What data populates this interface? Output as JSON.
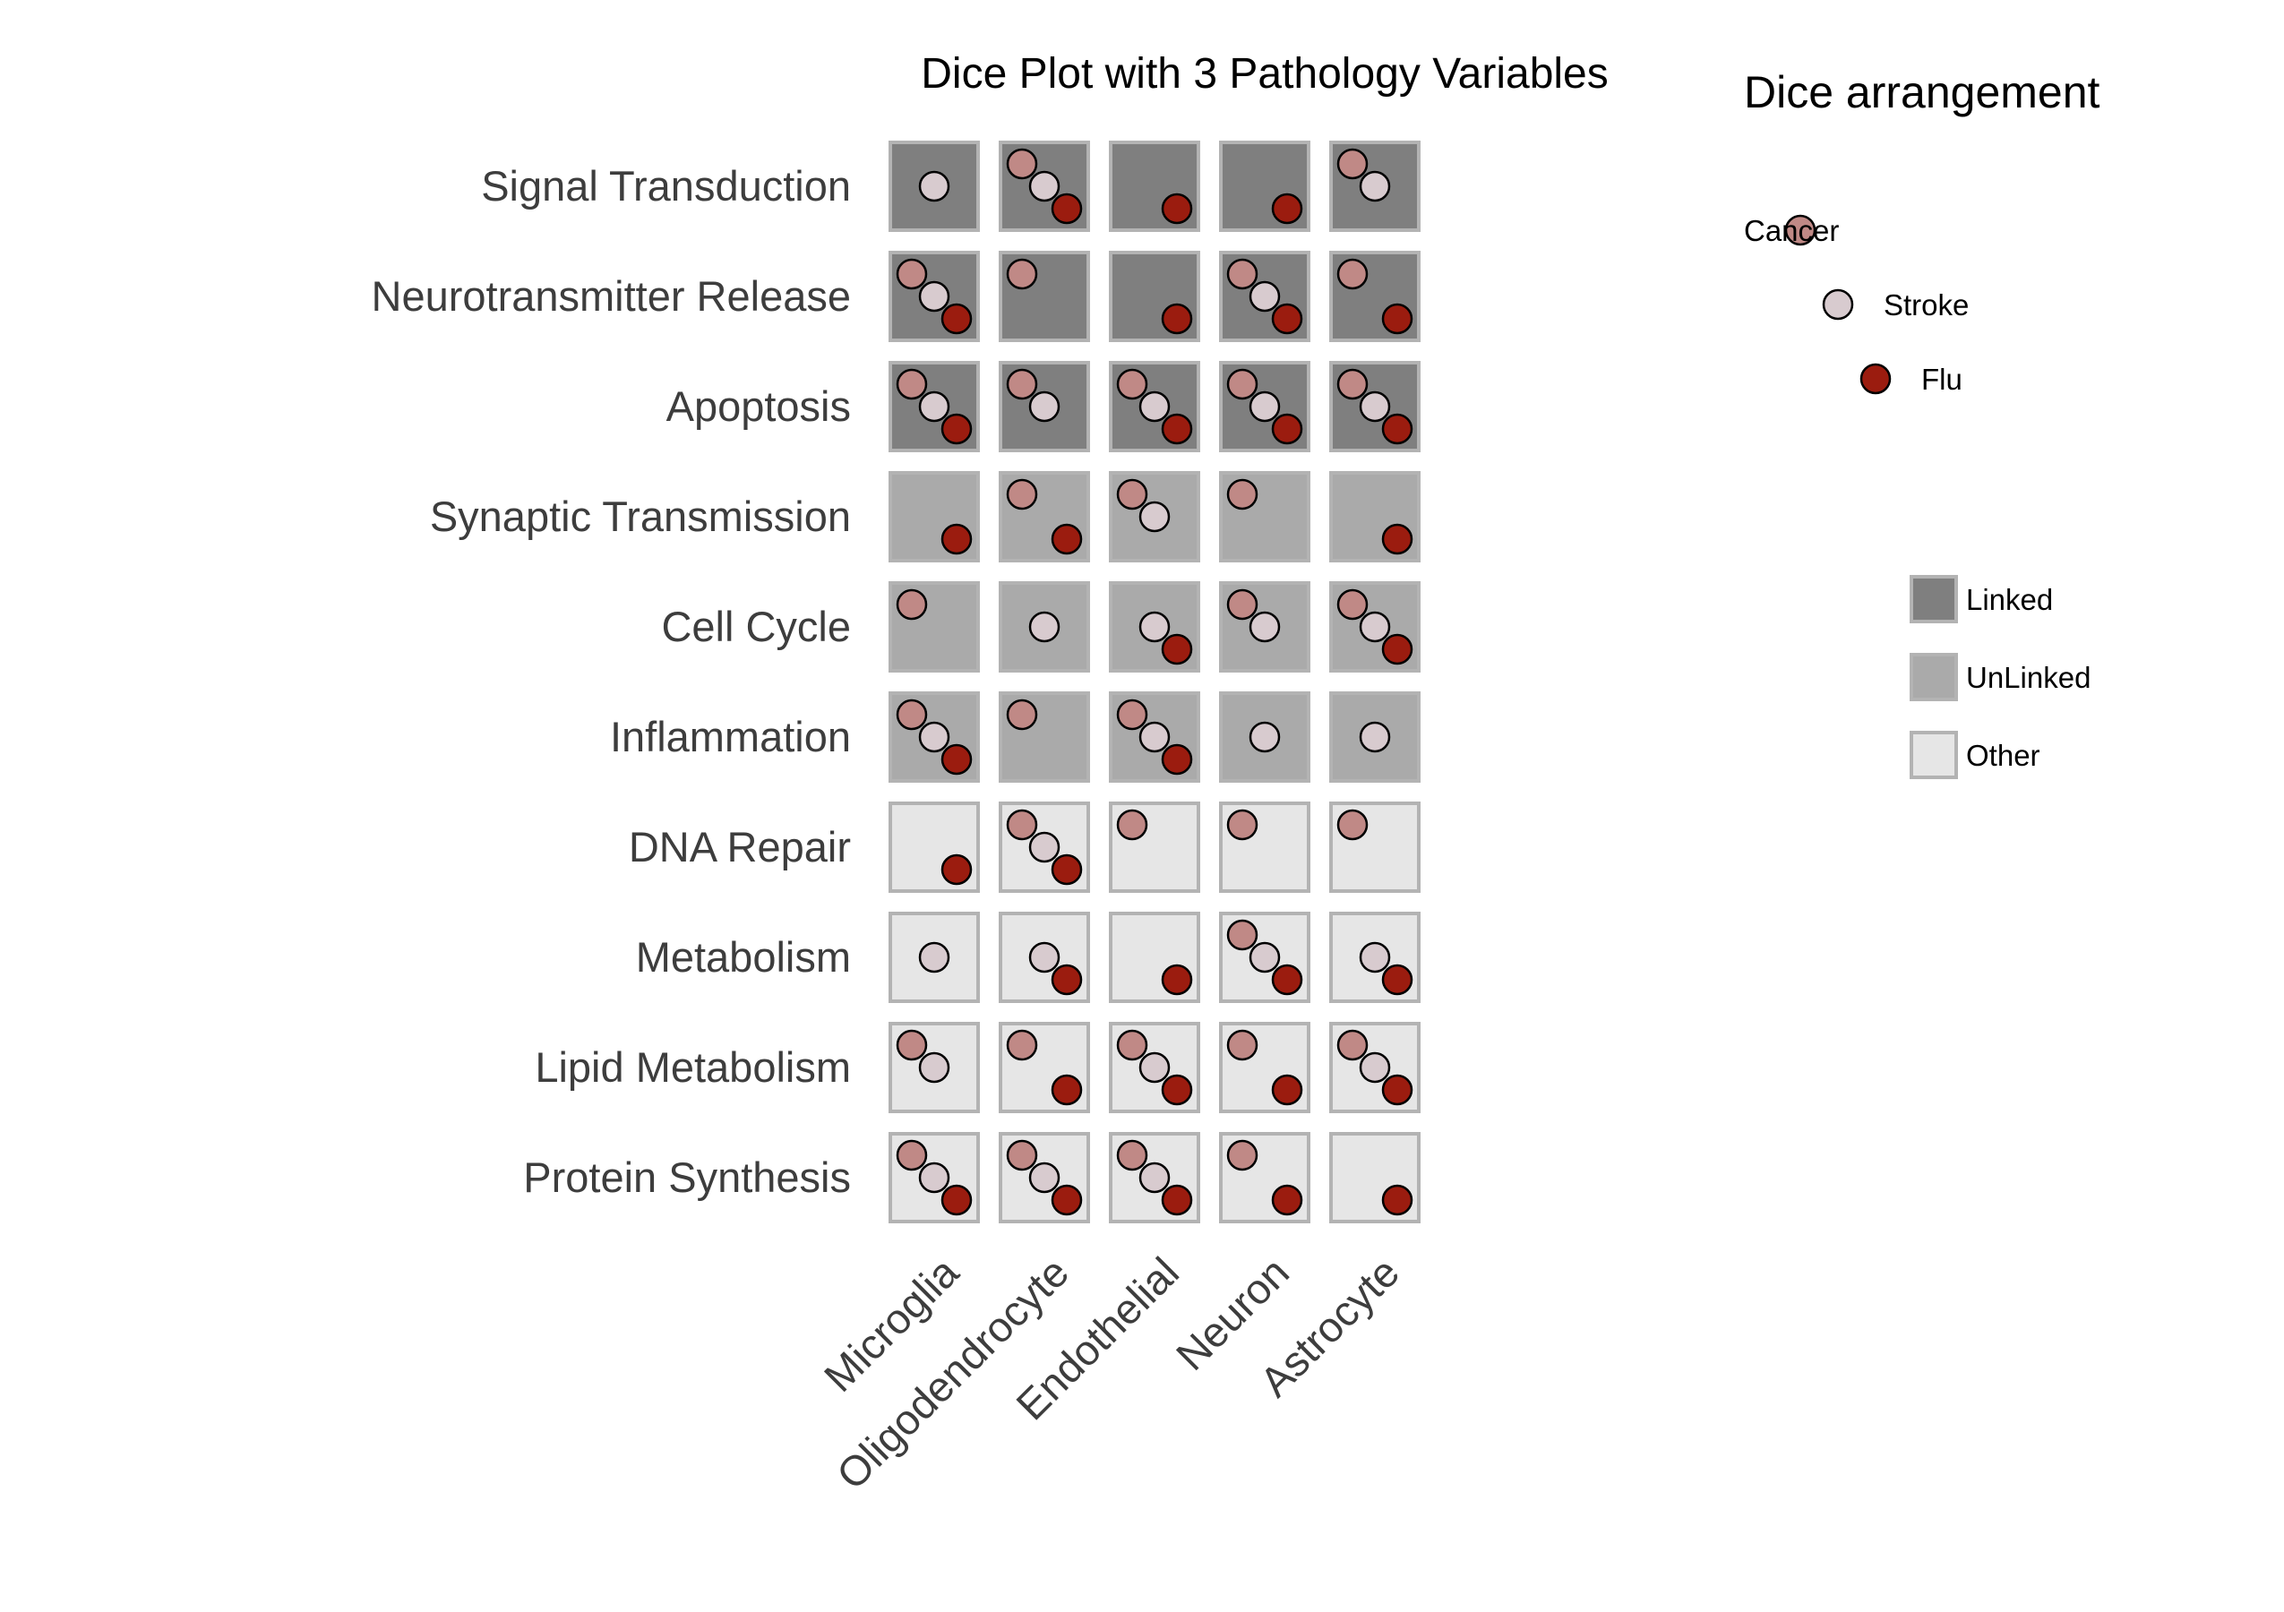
{
  "chart_data": {
    "type": "dice",
    "title": "Dice Plot with 3 Pathology Variables",
    "categories_x": [
      "Microglia",
      "Oligodendrocyte",
      "Endothelial",
      "Neuron",
      "Astrocyte"
    ],
    "categories_y": [
      "Signal Transduction",
      "Neurotransmitter Release",
      "Apoptosis",
      "Synaptic Transmission",
      "Cell Cycle",
      "Inflammation",
      "DNA Repair",
      "Metabolism",
      "Lipid Metabolism",
      "Protein Synthesis"
    ],
    "pathologies": [
      {
        "name": "Cancer",
        "color": "#c08986"
      },
      {
        "name": "Stroke",
        "color": "#d8cbcf"
      },
      {
        "name": "Flu",
        "color": "#9b1c0f"
      }
    ],
    "groups": [
      {
        "name": "Linked",
        "color": "#7f7f7f"
      },
      {
        "name": "UnLinked",
        "color": "#aaaaaa"
      },
      {
        "name": "Other",
        "color": "#e6e6e6"
      }
    ],
    "cells": [
      {
        "y": "Signal Transduction",
        "group": "Linked",
        "x": {
          "Microglia": [
            "Stroke"
          ],
          "Oligodendrocyte": [
            "Cancer",
            "Stroke",
            "Flu"
          ],
          "Endothelial": [
            "Flu"
          ],
          "Neuron": [
            "Flu"
          ],
          "Astrocyte": [
            "Cancer",
            "Stroke"
          ]
        }
      },
      {
        "y": "Neurotransmitter Release",
        "group": "Linked",
        "x": {
          "Microglia": [
            "Cancer",
            "Stroke",
            "Flu"
          ],
          "Oligodendrocyte": [
            "Cancer"
          ],
          "Endothelial": [
            "Flu"
          ],
          "Neuron": [
            "Cancer",
            "Stroke",
            "Flu"
          ],
          "Astrocyte": [
            "Cancer",
            "Flu"
          ]
        }
      },
      {
        "y": "Apoptosis",
        "group": "Linked",
        "x": {
          "Microglia": [
            "Cancer",
            "Stroke",
            "Flu"
          ],
          "Oligodendrocyte": [
            "Cancer",
            "Stroke"
          ],
          "Endothelial": [
            "Cancer",
            "Stroke",
            "Flu"
          ],
          "Neuron": [
            "Cancer",
            "Stroke",
            "Flu"
          ],
          "Astrocyte": [
            "Cancer",
            "Stroke",
            "Flu"
          ]
        }
      },
      {
        "y": "Synaptic Transmission",
        "group": "UnLinked",
        "x": {
          "Microglia": [
            "Flu"
          ],
          "Oligodendrocyte": [
            "Cancer",
            "Flu"
          ],
          "Endothelial": [
            "Cancer",
            "Stroke"
          ],
          "Neuron": [
            "Cancer"
          ],
          "Astrocyte": [
            "Flu"
          ]
        }
      },
      {
        "y": "Cell Cycle",
        "group": "UnLinked",
        "x": {
          "Microglia": [
            "Cancer"
          ],
          "Oligodendrocyte": [
            "Stroke"
          ],
          "Endothelial": [
            "Stroke",
            "Flu"
          ],
          "Neuron": [
            "Cancer",
            "Stroke"
          ],
          "Astrocyte": [
            "Cancer",
            "Stroke",
            "Flu"
          ]
        }
      },
      {
        "y": "Inflammation",
        "group": "UnLinked",
        "x": {
          "Microglia": [
            "Cancer",
            "Stroke",
            "Flu"
          ],
          "Oligodendrocyte": [
            "Cancer"
          ],
          "Endothelial": [
            "Cancer",
            "Stroke",
            "Flu"
          ],
          "Neuron": [
            "Stroke"
          ],
          "Astrocyte": [
            "Stroke"
          ]
        }
      },
      {
        "y": "DNA Repair",
        "group": "Other",
        "x": {
          "Microglia": [
            "Flu"
          ],
          "Oligodendrocyte": [
            "Cancer",
            "Stroke",
            "Flu"
          ],
          "Endothelial": [
            "Cancer"
          ],
          "Neuron": [
            "Cancer"
          ],
          "Astrocyte": [
            "Cancer"
          ]
        }
      },
      {
        "y": "Metabolism",
        "group": "Other",
        "x": {
          "Microglia": [
            "Stroke"
          ],
          "Oligodendrocyte": [
            "Stroke",
            "Flu"
          ],
          "Endothelial": [
            "Flu"
          ],
          "Neuron": [
            "Cancer",
            "Stroke",
            "Flu"
          ],
          "Astrocyte": [
            "Stroke",
            "Flu"
          ]
        }
      },
      {
        "y": "Lipid Metabolism",
        "group": "Other",
        "x": {
          "Microglia": [
            "Cancer",
            "Stroke"
          ],
          "Oligodendrocyte": [
            "Cancer",
            "Flu"
          ],
          "Endothelial": [
            "Cancer",
            "Stroke",
            "Flu"
          ],
          "Neuron": [
            "Cancer",
            "Flu"
          ],
          "Astrocyte": [
            "Cancer",
            "Stroke",
            "Flu"
          ]
        }
      },
      {
        "y": "Protein Synthesis",
        "group": "Other",
        "x": {
          "Microglia": [
            "Cancer",
            "Stroke",
            "Flu"
          ],
          "Oligodendrocyte": [
            "Cancer",
            "Stroke",
            "Flu"
          ],
          "Endothelial": [
            "Cancer",
            "Stroke",
            "Flu"
          ],
          "Neuron": [
            "Cancer",
            "Flu"
          ],
          "Astrocyte": [
            "Flu"
          ]
        }
      }
    ],
    "legend": {
      "dice_title": "Dice arrangement",
      "dice_placement": "right",
      "group_placement": "right"
    },
    "grid": false
  }
}
